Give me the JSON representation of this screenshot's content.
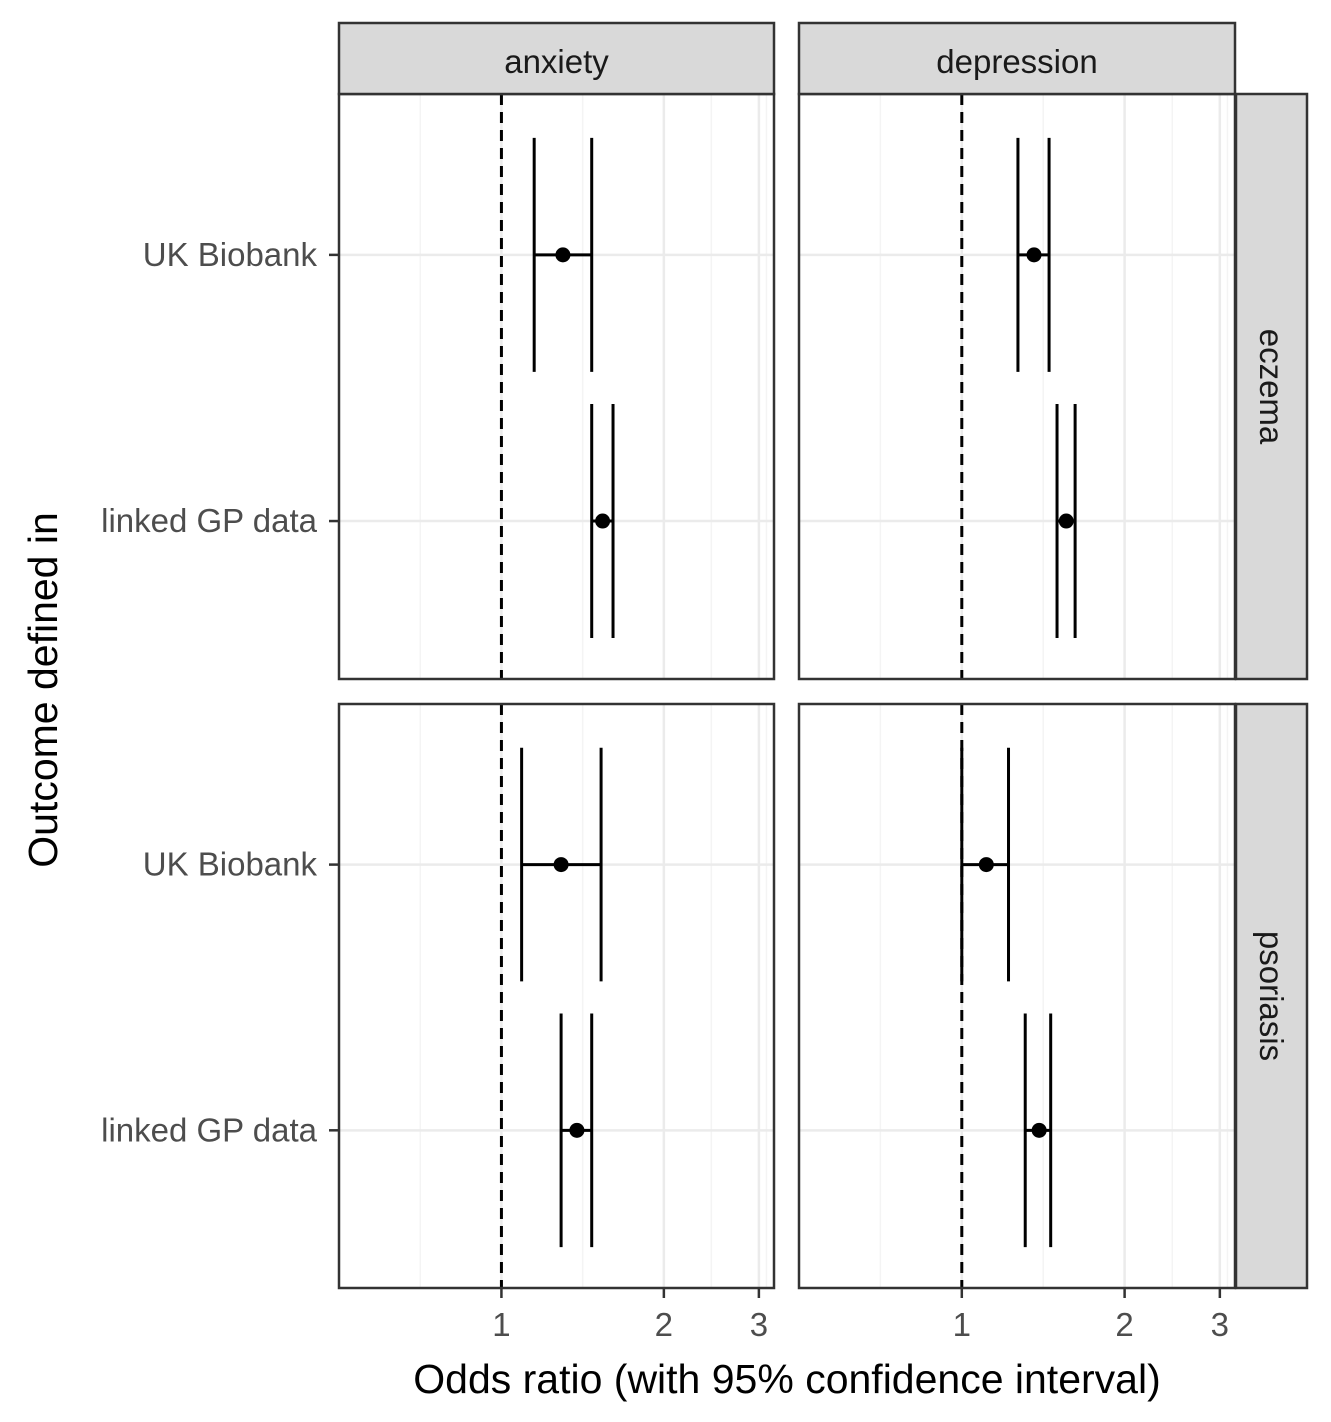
{
  "chart_data": {
    "type": "forest",
    "title": "",
    "xlabel": "Odds ratio (with 95% confidence interval)",
    "ylabel": "Outcome defined in",
    "x_scale": "log",
    "xlim": [
      0.5,
      3.2
    ],
    "x_ticks": [
      1,
      2,
      3
    ],
    "x_tick_labels": [
      "1",
      "2",
      "3"
    ],
    "reference_line": 1,
    "grid": true,
    "col_facets": [
      "anxiety",
      "depression"
    ],
    "row_facets": [
      "eczema",
      "psoriasis"
    ],
    "y_categories": [
      "UK Biobank",
      "linked GP data"
    ],
    "panels": [
      {
        "row": "eczema",
        "col": "anxiety",
        "points": [
          {
            "label": "UK Biobank",
            "or": 1.3,
            "lower": 1.15,
            "upper": 1.47
          },
          {
            "label": "linked GP data",
            "or": 1.54,
            "lower": 1.47,
            "upper": 1.61
          }
        ]
      },
      {
        "row": "eczema",
        "col": "depression",
        "points": [
          {
            "label": "UK Biobank",
            "or": 1.36,
            "lower": 1.27,
            "upper": 1.45
          },
          {
            "label": "linked GP data",
            "or": 1.56,
            "lower": 1.5,
            "upper": 1.62
          }
        ]
      },
      {
        "row": "psoriasis",
        "col": "anxiety",
        "points": [
          {
            "label": "UK Biobank",
            "or": 1.29,
            "lower": 1.09,
            "upper": 1.53
          },
          {
            "label": "linked GP data",
            "or": 1.38,
            "lower": 1.29,
            "upper": 1.47
          }
        ]
      },
      {
        "row": "psoriasis",
        "col": "depression",
        "points": [
          {
            "label": "UK Biobank",
            "or": 1.11,
            "lower": 1.0,
            "upper": 1.22
          },
          {
            "label": "linked GP data",
            "or": 1.39,
            "lower": 1.31,
            "upper": 1.46
          }
        ]
      }
    ]
  },
  "colors": {
    "panel_border": "#333333",
    "strip_fill": "#d9d9d9",
    "grid_major": "#ebebeb",
    "grid_minor": "#f4f4f4",
    "marks": "#000000",
    "tick_text": "#4d4d4d",
    "title_text": "#000000"
  }
}
